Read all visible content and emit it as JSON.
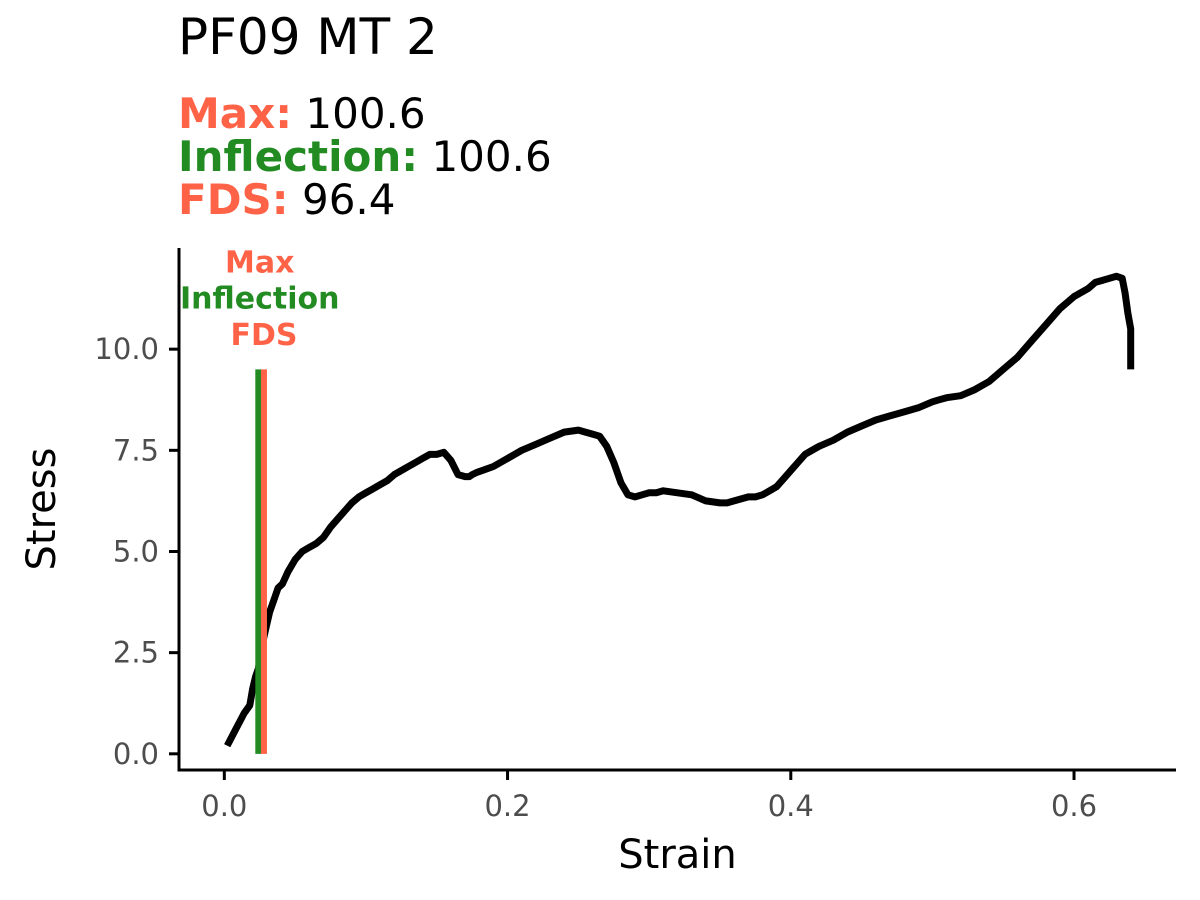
{
  "colors": {
    "max": "#FF6347",
    "inflection": "#228B22",
    "fds": "#FF6347",
    "curve": "#000000",
    "axis": "#000000",
    "tick_label": "#4D4D4D"
  },
  "chart_data": {
    "type": "line",
    "title": "PF09 MT 2",
    "subtitle": [
      {
        "label": "Max:",
        "value": "100.6",
        "color": "max"
      },
      {
        "label": "Inflection:",
        "value": "100.6",
        "color": "inflection"
      },
      {
        "label": "FDS:",
        "value": "96.4",
        "color": "fds"
      }
    ],
    "xlabel": "Strain",
    "ylabel": "Stress",
    "xlim": [
      -0.032,
      0.672
    ],
    "ylim": [
      -0.4,
      12.5
    ],
    "xticks": [
      0.0,
      0.2,
      0.4,
      0.6
    ],
    "xtick_labels": [
      "0.0",
      "0.2",
      "0.4",
      "0.6"
    ],
    "yticks": [
      0.0,
      2.5,
      5.0,
      7.5,
      10.0
    ],
    "ytick_labels": [
      "0.0",
      "2.5",
      "5.0",
      "7.5",
      "10.0"
    ],
    "grid": false,
    "legend": "none",
    "vlines": [
      {
        "name": "Inflection",
        "x": 0.024,
        "y_top": 9.5,
        "color": "inflection"
      },
      {
        "name": "Max",
        "x": 0.028,
        "y_top": 9.5,
        "color": "max"
      }
    ],
    "annotations": [
      {
        "text": "Max",
        "x": 0.025,
        "y": 11.9,
        "color": "max"
      },
      {
        "text": "Inflection",
        "x": 0.025,
        "y": 11.0,
        "color": "inflection"
      },
      {
        "text": "FDS",
        "x": 0.028,
        "y": 10.1,
        "color": "fds"
      }
    ],
    "series": [
      {
        "x": [
          0.002,
          0.005,
          0.008,
          0.011,
          0.014,
          0.018,
          0.02,
          0.022,
          0.024,
          0.026,
          0.028,
          0.03,
          0.032,
          0.035,
          0.038,
          0.041,
          0.045,
          0.05,
          0.055,
          0.06,
          0.065,
          0.07,
          0.075,
          0.08,
          0.085,
          0.09,
          0.095,
          0.1,
          0.105,
          0.11,
          0.115,
          0.12,
          0.125,
          0.13,
          0.135,
          0.14,
          0.145,
          0.15,
          0.155,
          0.16,
          0.165,
          0.17,
          0.173,
          0.175,
          0.178,
          0.182,
          0.19,
          0.2,
          0.21,
          0.22,
          0.23,
          0.24,
          0.25,
          0.255,
          0.26,
          0.265,
          0.27,
          0.275,
          0.28,
          0.285,
          0.29,
          0.295,
          0.3,
          0.305,
          0.31,
          0.32,
          0.33,
          0.34,
          0.35,
          0.355,
          0.36,
          0.365,
          0.37,
          0.375,
          0.38,
          0.385,
          0.39,
          0.395,
          0.4,
          0.405,
          0.41,
          0.415,
          0.42,
          0.43,
          0.44,
          0.45,
          0.46,
          0.47,
          0.48,
          0.49,
          0.5,
          0.505,
          0.51,
          0.52,
          0.53,
          0.54,
          0.55,
          0.56,
          0.57,
          0.58,
          0.59,
          0.6,
          0.61,
          0.615,
          0.62,
          0.625,
          0.63,
          0.634,
          0.636,
          0.638,
          0.64,
          0.64
        ],
        "y": [
          0.2,
          0.4,
          0.6,
          0.8,
          1.0,
          1.2,
          1.6,
          1.9,
          2.1,
          2.5,
          2.9,
          3.2,
          3.5,
          3.8,
          4.1,
          4.2,
          4.5,
          4.8,
          5.0,
          5.1,
          5.2,
          5.35,
          5.6,
          5.8,
          6.0,
          6.2,
          6.35,
          6.45,
          6.55,
          6.65,
          6.75,
          6.9,
          7.0,
          7.1,
          7.2,
          7.3,
          7.4,
          7.4,
          7.45,
          7.25,
          6.9,
          6.85,
          6.85,
          6.9,
          6.95,
          7.0,
          7.1,
          7.3,
          7.5,
          7.65,
          7.8,
          7.95,
          8.0,
          7.95,
          7.9,
          7.85,
          7.6,
          7.2,
          6.7,
          6.4,
          6.35,
          6.4,
          6.45,
          6.45,
          6.5,
          6.45,
          6.4,
          6.25,
          6.2,
          6.2,
          6.25,
          6.3,
          6.35,
          6.35,
          6.4,
          6.5,
          6.6,
          6.8,
          7.0,
          7.2,
          7.4,
          7.5,
          7.6,
          7.75,
          7.95,
          8.1,
          8.25,
          8.35,
          8.45,
          8.55,
          8.7,
          8.75,
          8.8,
          8.85,
          9.0,
          9.2,
          9.5,
          9.8,
          10.2,
          10.6,
          11.0,
          11.3,
          11.5,
          11.65,
          11.7,
          11.75,
          11.8,
          11.75,
          11.4,
          10.9,
          10.5,
          9.5
        ]
      }
    ]
  }
}
